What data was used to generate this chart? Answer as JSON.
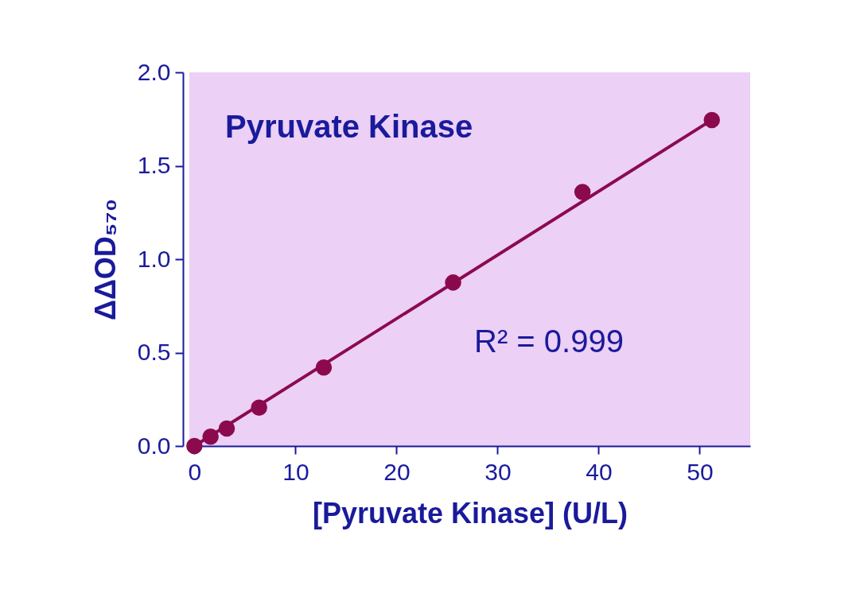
{
  "chart_data": {
    "type": "scatter",
    "title": "Pyruvate Kinase",
    "xlabel": "[Pyruvate Kinase] (U/L)",
    "ylabel": "ΔΔOD₅₇₀",
    "annotations": [
      "R² = 0.999"
    ],
    "series": [
      {
        "color": "#8b0a4e",
        "marker": "circle",
        "x": [
          0,
          1.6,
          3.2,
          6.4,
          12.8,
          25.6,
          38.4,
          51.2
        ],
        "values": [
          0.0,
          0.05,
          0.094,
          0.205,
          0.42,
          0.875,
          1.36,
          1.745
        ]
      },
      {
        "type": "line",
        "color": "#8b0a4e",
        "line_style": "solid",
        "x": [
          0,
          51.2
        ],
        "values": [
          0.0,
          1.745
        ]
      }
    ],
    "xlim": [
      -0.5,
      55
    ],
    "ylim": [
      0,
      2
    ],
    "xticks": [
      0,
      10,
      20,
      30,
      40,
      50
    ],
    "yticks": [
      {
        "value": 0,
        "label": "0.0"
      },
      {
        "value": 0.5,
        "label": "0.5"
      },
      {
        "value": 1,
        "label": "1.0"
      },
      {
        "value": 1.5,
        "label": "1.5"
      },
      {
        "value": 2,
        "label": "2.0"
      }
    ],
    "grid": false
  }
}
